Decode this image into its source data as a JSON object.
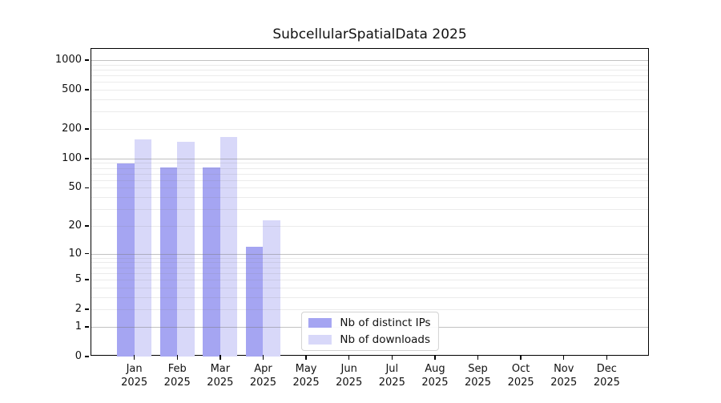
{
  "chart_data": {
    "type": "bar",
    "title": "SubcellularSpatialData 2025",
    "y_scale": "log1p",
    "grid": "horizontal",
    "legend_position": "lower center",
    "year": "2025",
    "categories": [
      "Jan",
      "Feb",
      "Mar",
      "Apr",
      "May",
      "Jun",
      "Jul",
      "Aug",
      "Sep",
      "Oct",
      "Nov",
      "Dec"
    ],
    "series": [
      {
        "name": "Nb of distinct IPs",
        "color": "#a5a5f2",
        "values": [
          89,
          81,
          81,
          12,
          0,
          0,
          0,
          0,
          0,
          0,
          0,
          0
        ]
      },
      {
        "name": "Nb of downloads",
        "color": "#d8d8f9",
        "values": [
          158,
          149,
          167,
          23,
          0,
          0,
          0,
          0,
          0,
          0,
          0,
          0
        ]
      }
    ],
    "y_ticks": [
      0,
      1,
      2,
      5,
      10,
      20,
      50,
      100,
      200,
      500,
      1000
    ],
    "ylim": [
      0,
      1300
    ],
    "xlabel": "",
    "ylabel": "",
    "axis_color": "#000000"
  }
}
